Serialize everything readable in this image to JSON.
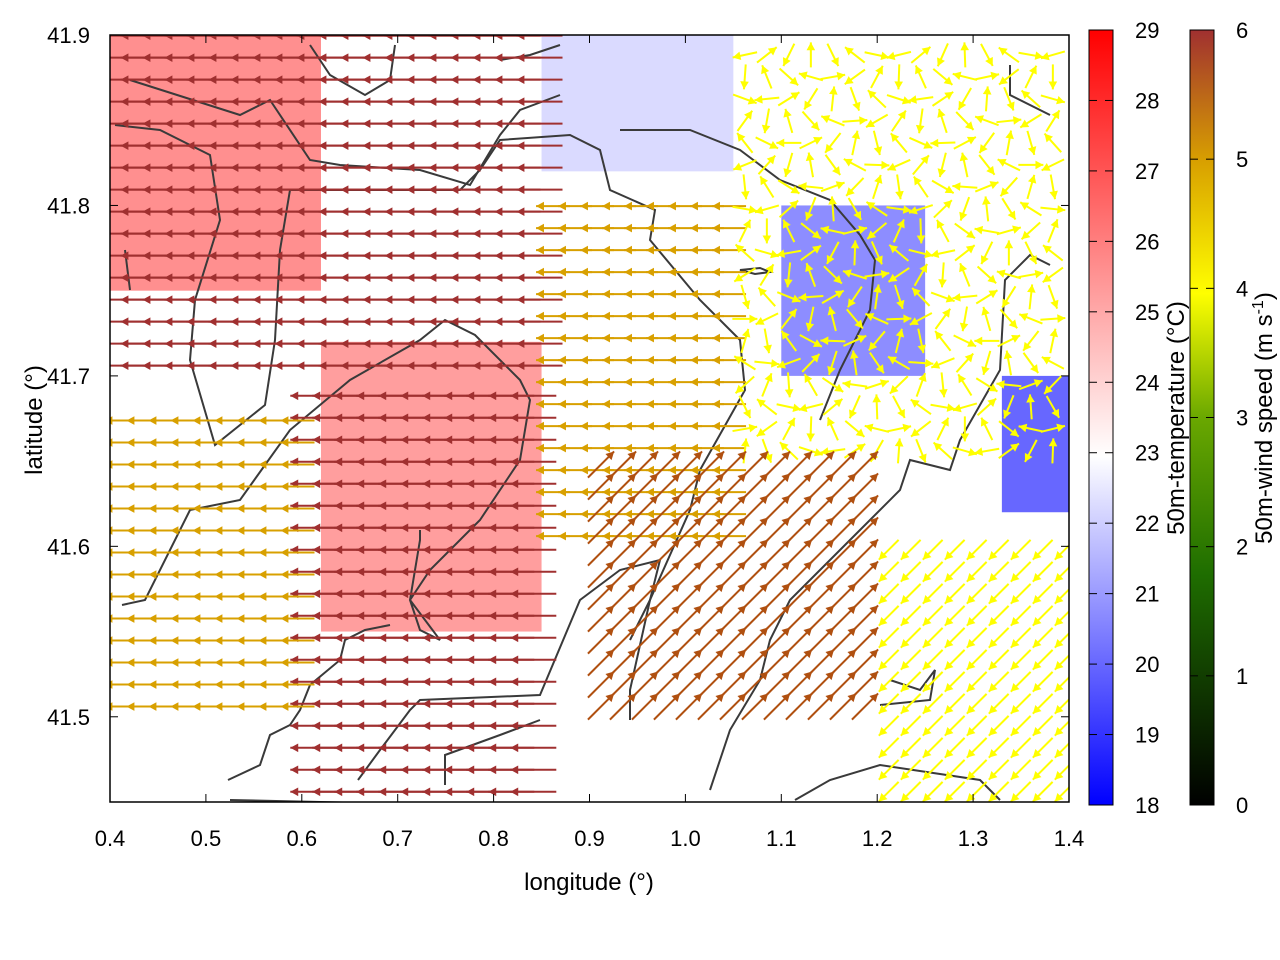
{
  "chart_data": {
    "type": "heatmap",
    "subtype": "vector-field-over-scalar-field",
    "xlabel": "longitude (°)",
    "ylabel": "latitude (°)",
    "xlim": [
      0.4,
      1.4
    ],
    "ylim": [
      41.45,
      41.9
    ],
    "xticks": [
      "0.4",
      "0.5",
      "0.6",
      "0.7",
      "0.8",
      "0.9",
      "1.0",
      "1.1",
      "1.2",
      "1.3",
      "1.4"
    ],
    "yticks": [
      "41.5",
      "41.6",
      "41.7",
      "41.8",
      "41.9"
    ],
    "temperature_colorbar": {
      "label": "50m-temperature (°C)",
      "range": [
        18,
        29
      ],
      "ticks": [
        "18",
        "19",
        "20",
        "21",
        "22",
        "23",
        "24",
        "25",
        "26",
        "27",
        "28",
        "29"
      ],
      "colors": {
        "low": "#0000ff",
        "mid": "#ffffff",
        "high": "#ff0000"
      }
    },
    "windspeed_colorbar": {
      "label": "50m-wind speed (m s",
      "label_sup": "-1",
      "label_end": ")",
      "range": [
        0,
        6
      ],
      "ticks": [
        "0",
        "1",
        "2",
        "3",
        "4",
        "5",
        "6"
      ],
      "colors": [
        "#000000",
        "#1f6e00",
        "#6aa800",
        "#ffff00",
        "#d8a000",
        "#b05010",
        "#a03030"
      ]
    },
    "grid": false,
    "legend": "none",
    "temperature_field_regions": [
      {
        "lon": [
          0.4,
          0.62
        ],
        "lat": [
          41.75,
          41.9
        ],
        "temp": 26.5
      },
      {
        "lon": [
          0.62,
          0.85
        ],
        "lat": [
          41.55,
          41.72
        ],
        "temp": 26
      },
      {
        "lon": [
          0.85,
          1.05
        ],
        "lat": [
          41.82,
          41.9
        ],
        "temp": 22
      },
      {
        "lon": [
          1.1,
          1.25
        ],
        "lat": [
          41.7,
          41.8
        ],
        "temp": 20
      },
      {
        "lon": [
          1.33,
          1.4
        ],
        "lat": [
          41.62,
          41.7
        ],
        "temp": 19
      }
    ],
    "wind_field_regions": [
      {
        "lon": [
          0.4,
          0.85
        ],
        "lat": [
          41.7,
          41.9
        ],
        "speed": 6,
        "direction": "west"
      },
      {
        "lon": [
          0.6,
          0.85
        ],
        "lat": [
          41.45,
          41.7
        ],
        "speed": 6,
        "direction": "west"
      },
      {
        "lon": [
          0.4,
          0.6
        ],
        "lat": [
          41.5,
          41.68
        ],
        "speed": 4,
        "direction": "west"
      },
      {
        "lon": [
          0.85,
          1.05
        ],
        "lat": [
          41.6,
          41.8
        ],
        "speed": 4,
        "direction": "west"
      },
      {
        "lon": [
          1.05,
          1.4
        ],
        "lat": [
          41.65,
          41.9
        ],
        "speed": 2.5,
        "direction": "variable"
      },
      {
        "lon": [
          0.9,
          1.2
        ],
        "lat": [
          41.5,
          41.65
        ],
        "speed": 4.5,
        "direction": "northeast"
      },
      {
        "lon": [
          1.2,
          1.4
        ],
        "lat": [
          41.45,
          41.6
        ],
        "speed": 3,
        "direction": "southwest"
      }
    ]
  }
}
